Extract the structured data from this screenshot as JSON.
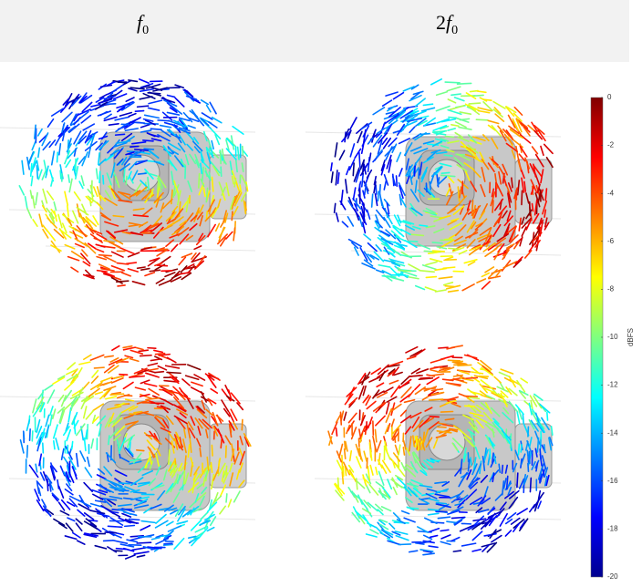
{
  "columns": [
    {
      "symbol": "f",
      "subscript": "0"
    },
    {
      "coefficient": "2",
      "symbol": "f",
      "subscript": "0"
    }
  ],
  "colorbar": {
    "label": "dBFS",
    "lim": [
      -20,
      0
    ],
    "ticks": [
      0,
      -2,
      -4,
      -6,
      -8,
      -10,
      -12,
      -14,
      -16,
      -18,
      -20
    ]
  }
}
